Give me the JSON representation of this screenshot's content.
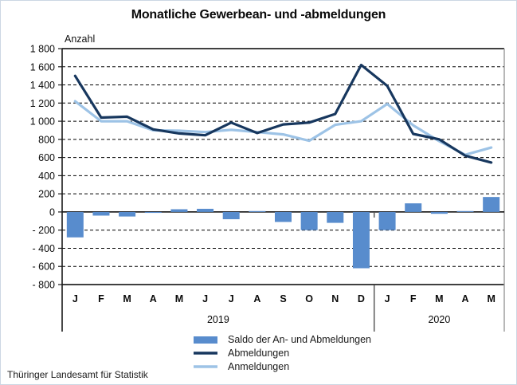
{
  "header": {
    "title": "Monatliche Gewerbean- und -abmeldungen"
  },
  "footer": {
    "source": "Thüringer Landesamt für Statistik"
  },
  "chart_data": {
    "type": "bar+line",
    "title": "Monatliche Gewerbean- und -abmeldungen",
    "y_axis": {
      "unit_label": "Anzahl",
      "min": -800,
      "max": 1800,
      "step": 200,
      "tick_labels": [
        "1 800",
        "1 600",
        "1 400",
        "1 200",
        "1 000",
        "800",
        "600",
        "400",
        "200",
        "0",
        "- 200",
        "- 400",
        "- 600",
        "- 800"
      ]
    },
    "x_axis": {
      "categories": [
        "J",
        "F",
        "M",
        "A",
        "M",
        "J",
        "J",
        "A",
        "S",
        "O",
        "N",
        "D",
        "J",
        "F",
        "M",
        "A",
        "M"
      ],
      "year_groups": [
        {
          "label": "2019",
          "span": 12
        },
        {
          "label": "2020",
          "span": 5
        }
      ]
    },
    "grid": "dashed horizontal every 200",
    "legend_position": "bottom",
    "series": [
      {
        "name": "Saldo der An- und Abmeldungen",
        "type": "bar",
        "color": "#588ccd",
        "values": [
          -280,
          -40,
          -50,
          -10,
          30,
          35,
          -80,
          10,
          -110,
          -200,
          -120,
          -620,
          -200,
          95,
          -20,
          10,
          165
        ]
      },
      {
        "name": "Abmeldungen",
        "type": "line",
        "color": "#17375e",
        "values": [
          1500,
          1040,
          1050,
          910,
          865,
          845,
          985,
          870,
          965,
          985,
          1080,
          1620,
          1390,
          860,
          800,
          620,
          545
        ]
      },
      {
        "name": "Anmeldungen",
        "type": "line",
        "color": "#9dc3e6",
        "values": [
          1220,
          1000,
          1000,
          900,
          895,
          880,
          905,
          880,
          855,
          785,
          960,
          1000,
          1190,
          955,
          780,
          630,
          710
        ]
      }
    ]
  }
}
